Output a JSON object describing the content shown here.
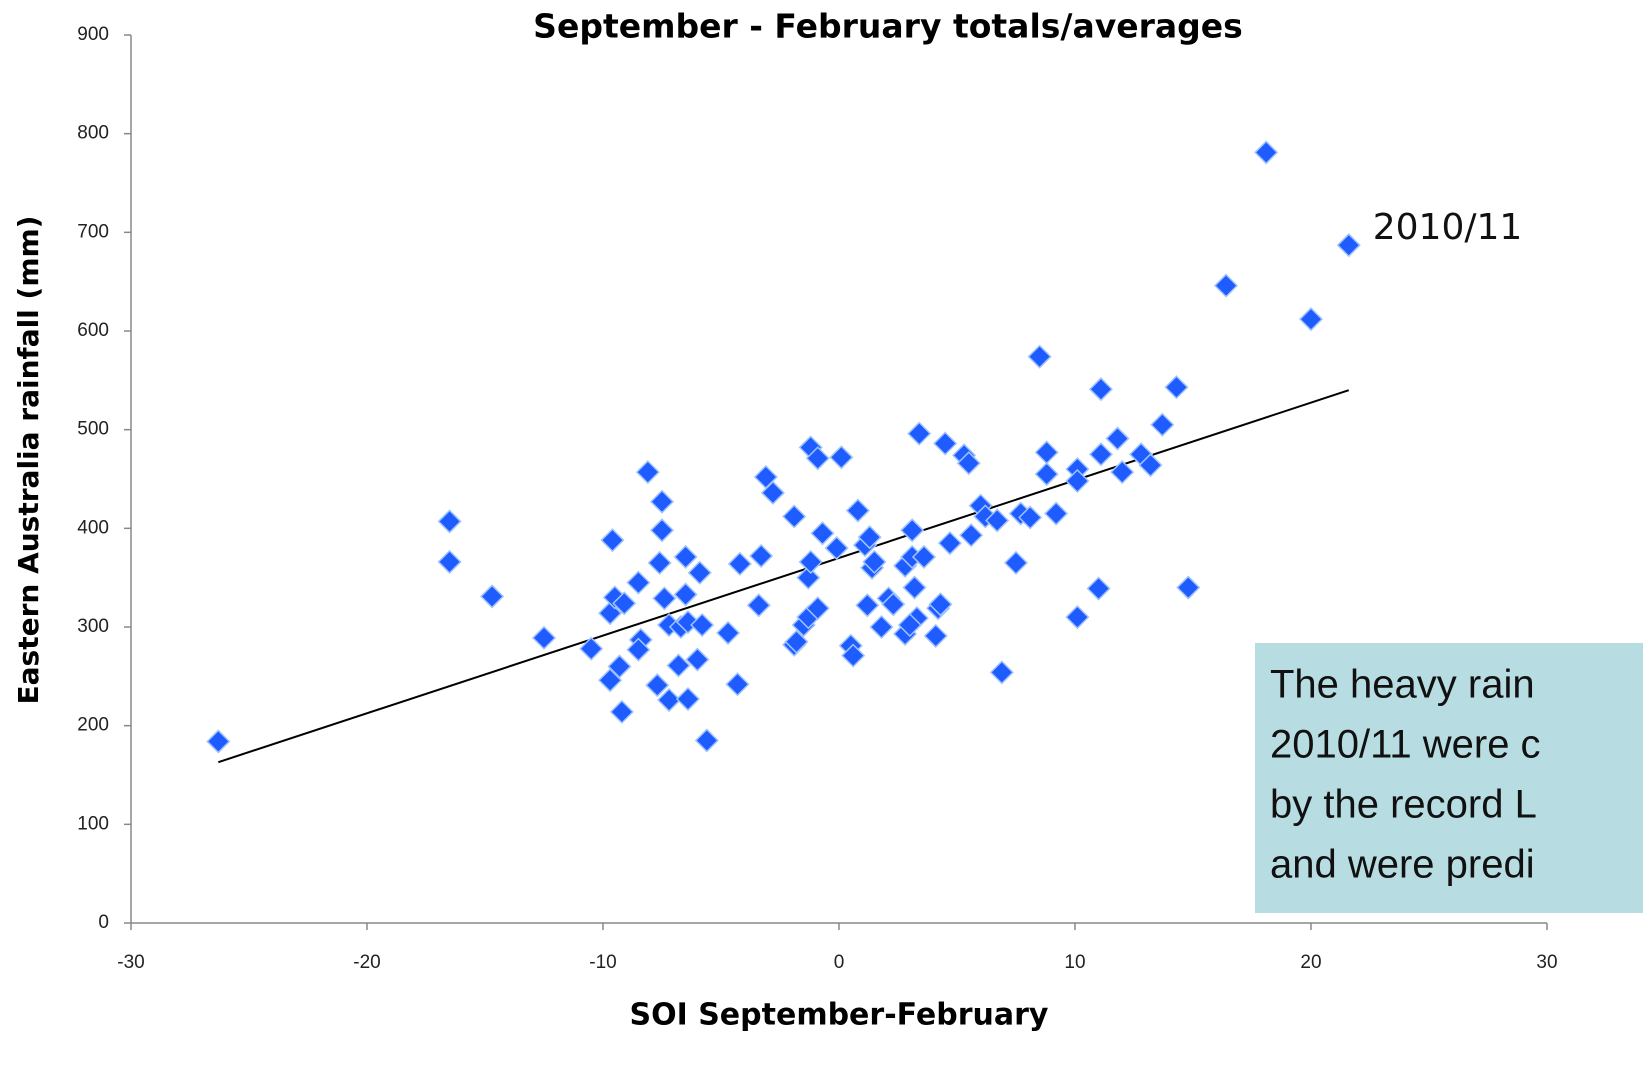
{
  "chart_data": {
    "type": "scatter",
    "title": "September - February totals/averages",
    "x_label": "SOI September-February",
    "y_label": "Eastern Australia rainfall (mm)",
    "annotation": "2010/11",
    "note_lines": [
      "The heavy rain",
      "2010/11 were c",
      "by the record L",
      "and were predi"
    ],
    "color": "#1f5cff",
    "xlim": [
      -30,
      30
    ],
    "xticks": [
      -30,
      -20,
      -10,
      0,
      10,
      20,
      30
    ],
    "ylim": [
      0,
      900
    ],
    "yticks": [
      0,
      100,
      200,
      300,
      400,
      500,
      600,
      700,
      800,
      900
    ],
    "trendline": {
      "x": [
        -26.3,
        21.6
      ],
      "y": [
        163,
        540
      ]
    },
    "x": [
      -26.3,
      -16.5,
      -16.5,
      -14.7,
      -12.5,
      -10.5,
      -9.6,
      -9.7,
      -9.5,
      -9.1,
      -9.7,
      -9.3,
      -9.2,
      -8.5,
      -8.4,
      -8.5,
      -8.1,
      -7.5,
      -7.5,
      -7.6,
      -7.4,
      -7.2,
      -7.7,
      -7.2,
      -6.8,
      -6.7,
      -6.5,
      -6.5,
      -6.4,
      -6.4,
      -6.0,
      -5.9,
      -5.8,
      -5.6,
      -4.7,
      -4.3,
      -4.2,
      -3.4,
      -3.3,
      -3.1,
      -2.8,
      -1.9,
      -1.9,
      -1.8,
      -1.5,
      -1.3,
      -1.3,
      -1.2,
      -1.2,
      -0.9,
      -0.9,
      -0.7,
      -0.1,
      0.1,
      0.5,
      0.6,
      0.8,
      1.1,
      1.3,
      1.2,
      1.4,
      1.5,
      1.8,
      2.1,
      2.3,
      2.8,
      2.8,
      3.1,
      3.1,
      3.2,
      3.3,
      3.0,
      3.4,
      3.6,
      4.1,
      4.2,
      4.3,
      4.5,
      4.7,
      5.3,
      5.5,
      5.6,
      6.0,
      6.2,
      6.7,
      6.9,
      7.5,
      7.7,
      8.1,
      8.5,
      8.8,
      8.8,
      9.2,
      10.1,
      10.1,
      10.1,
      11.0,
      11.1,
      11.1,
      11.8,
      12.0,
      12.8,
      13.2,
      13.7,
      14.3,
      14.8,
      16.4,
      18.1,
      20.0,
      21.6
    ],
    "values": [
      184,
      407,
      366,
      331,
      289,
      278,
      388,
      314,
      330,
      324,
      246,
      260,
      214,
      345,
      287,
      277,
      457,
      427,
      398,
      365,
      329,
      302,
      241,
      226,
      261,
      300,
      371,
      333,
      305,
      227,
      267,
      355,
      302,
      185,
      294,
      242,
      364,
      322,
      372,
      452,
      436,
      412,
      282,
      285,
      302,
      310,
      350,
      366,
      482,
      319,
      471,
      395,
      380,
      472,
      281,
      271,
      418,
      383,
      391,
      322,
      360,
      366,
      300,
      329,
      323,
      362,
      293,
      398,
      371,
      340,
      309,
      302,
      496,
      371,
      291,
      319,
      323,
      486,
      385,
      474,
      466,
      393,
      423,
      412,
      408,
      254,
      365,
      415,
      411,
      574,
      455,
      477,
      415,
      310,
      460,
      448,
      339,
      541,
      475,
      491,
      457,
      475,
      464,
      505,
      543,
      340,
      646,
      781,
      612,
      687
    ]
  }
}
